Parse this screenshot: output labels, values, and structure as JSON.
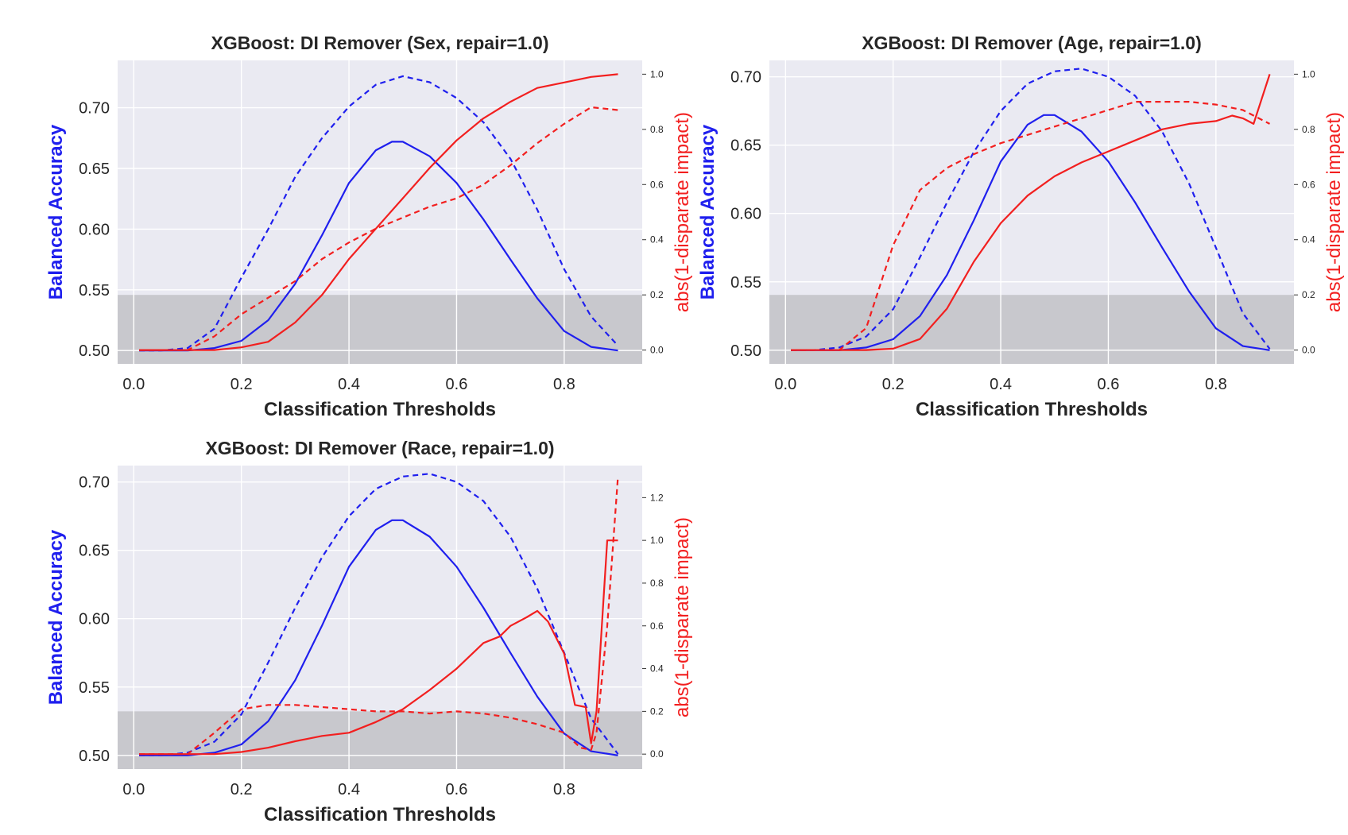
{
  "chart_data": [
    {
      "type": "line",
      "title": "XGBoost: DI Remover (Sex, repair=1.0)",
      "xlabel": "Classification Thresholds",
      "ylabel": "Balanced Accuracy",
      "y2label": "abs(1-disparate impact)",
      "xlim": [
        -0.03,
        0.945
      ],
      "ylim": [
        0.489,
        0.739
      ],
      "y2lim": [
        -0.05,
        1.05
      ],
      "xticks": [
        "0.0",
        "0.2",
        "0.4",
        "0.6",
        "0.8"
      ],
      "yticks": [
        "0.50",
        "0.55",
        "0.60",
        "0.65",
        "0.70"
      ],
      "y2ticks": [
        "0.0",
        "0.2",
        "0.4",
        "0.6",
        "0.8",
        "1.0"
      ],
      "fair_band": [
        0.0,
        0.2
      ],
      "grid": true,
      "colors": {
        "accuracy": "#1f1fee",
        "disparate_impact": "#f21f1f",
        "band": "#c8c8cd",
        "panel": "#eaeaf2"
      },
      "series": [
        {
          "role": "accuracy",
          "style": "solid",
          "axis": "left",
          "x": [
            0.01,
            0.05,
            0.1,
            0.15,
            0.2,
            0.25,
            0.3,
            0.35,
            0.4,
            0.45,
            0.48,
            0.5,
            0.55,
            0.6,
            0.65,
            0.7,
            0.75,
            0.8,
            0.85,
            0.9
          ],
          "y": [
            0.5,
            0.5,
            0.5,
            0.502,
            0.508,
            0.525,
            0.555,
            0.595,
            0.638,
            0.665,
            0.672,
            0.672,
            0.66,
            0.638,
            0.608,
            0.575,
            0.543,
            0.516,
            0.503,
            0.5
          ]
        },
        {
          "role": "accuracy",
          "style": "dashed",
          "axis": "left",
          "x": [
            0.01,
            0.05,
            0.1,
            0.15,
            0.2,
            0.25,
            0.3,
            0.35,
            0.4,
            0.45,
            0.5,
            0.55,
            0.6,
            0.65,
            0.7,
            0.75,
            0.8,
            0.85,
            0.9
          ],
          "y": [
            0.5,
            0.5,
            0.502,
            0.518,
            0.56,
            0.6,
            0.643,
            0.675,
            0.701,
            0.719,
            0.726,
            0.721,
            0.708,
            0.688,
            0.658,
            0.616,
            0.567,
            0.528,
            0.504
          ]
        },
        {
          "role": "disparate_impact",
          "style": "solid",
          "axis": "right",
          "x": [
            0.01,
            0.05,
            0.1,
            0.15,
            0.2,
            0.25,
            0.3,
            0.35,
            0.4,
            0.45,
            0.5,
            0.55,
            0.6,
            0.65,
            0.7,
            0.75,
            0.8,
            0.85,
            0.9
          ],
          "y": [
            0.0,
            0.0,
            0.0,
            0.0,
            0.01,
            0.03,
            0.1,
            0.2,
            0.33,
            0.44,
            0.55,
            0.66,
            0.76,
            0.84,
            0.9,
            0.95,
            0.97,
            0.99,
            1.0
          ]
        },
        {
          "role": "disparate_impact",
          "style": "dashed",
          "axis": "right",
          "x": [
            0.01,
            0.05,
            0.1,
            0.15,
            0.2,
            0.25,
            0.3,
            0.35,
            0.4,
            0.45,
            0.5,
            0.55,
            0.6,
            0.65,
            0.7,
            0.75,
            0.8,
            0.85,
            0.9
          ],
          "y": [
            0.0,
            0.0,
            0.0,
            0.05,
            0.13,
            0.19,
            0.25,
            0.33,
            0.39,
            0.44,
            0.48,
            0.52,
            0.55,
            0.6,
            0.67,
            0.75,
            0.82,
            0.88,
            0.87
          ]
        }
      ]
    },
    {
      "type": "line",
      "title": "XGBoost: DI Remover (Age, repair=1.0)",
      "xlabel": "Classification Thresholds",
      "ylabel": "Balanced Accuracy",
      "y2label": "abs(1-disparate impact)",
      "xlim": [
        -0.03,
        0.945
      ],
      "ylim": [
        0.49,
        0.712
      ],
      "y2lim": [
        -0.05,
        1.05
      ],
      "xticks": [
        "0.0",
        "0.2",
        "0.4",
        "0.6",
        "0.8"
      ],
      "yticks": [
        "0.50",
        "0.55",
        "0.60",
        "0.65",
        "0.70"
      ],
      "y2ticks": [
        "0.0",
        "0.2",
        "0.4",
        "0.6",
        "0.8",
        "1.0"
      ],
      "fair_band": [
        0.0,
        0.2
      ],
      "grid": true,
      "colors": {
        "accuracy": "#1f1fee",
        "disparate_impact": "#f21f1f",
        "band": "#c8c8cd",
        "panel": "#eaeaf2"
      },
      "series": [
        {
          "role": "accuracy",
          "style": "solid",
          "axis": "left",
          "x": [
            0.01,
            0.05,
            0.1,
            0.15,
            0.2,
            0.25,
            0.3,
            0.35,
            0.4,
            0.45,
            0.48,
            0.5,
            0.55,
            0.6,
            0.65,
            0.7,
            0.75,
            0.8,
            0.85,
            0.9
          ],
          "y": [
            0.5,
            0.5,
            0.5,
            0.502,
            0.508,
            0.525,
            0.555,
            0.595,
            0.638,
            0.665,
            0.672,
            0.672,
            0.66,
            0.638,
            0.608,
            0.575,
            0.543,
            0.516,
            0.503,
            0.5
          ]
        },
        {
          "role": "accuracy",
          "style": "dashed",
          "axis": "left",
          "x": [
            0.01,
            0.05,
            0.1,
            0.15,
            0.2,
            0.25,
            0.3,
            0.35,
            0.4,
            0.45,
            0.5,
            0.55,
            0.6,
            0.65,
            0.7,
            0.75,
            0.8,
            0.85,
            0.9
          ],
          "y": [
            0.5,
            0.5,
            0.502,
            0.51,
            0.53,
            0.568,
            0.608,
            0.645,
            0.675,
            0.695,
            0.704,
            0.706,
            0.7,
            0.686,
            0.66,
            0.622,
            0.575,
            0.527,
            0.501
          ]
        },
        {
          "role": "disparate_impact",
          "style": "solid",
          "axis": "right",
          "x": [
            0.01,
            0.05,
            0.1,
            0.15,
            0.2,
            0.25,
            0.3,
            0.35,
            0.4,
            0.45,
            0.5,
            0.55,
            0.6,
            0.65,
            0.7,
            0.75,
            0.8,
            0.83,
            0.85,
            0.87,
            0.9
          ],
          "y": [
            0.0,
            0.0,
            0.0,
            0.0,
            0.005,
            0.04,
            0.15,
            0.32,
            0.46,
            0.56,
            0.63,
            0.68,
            0.72,
            0.76,
            0.8,
            0.82,
            0.83,
            0.85,
            0.84,
            0.82,
            1.0
          ]
        },
        {
          "role": "disparate_impact",
          "style": "dashed",
          "axis": "right",
          "x": [
            0.01,
            0.05,
            0.1,
            0.15,
            0.2,
            0.25,
            0.3,
            0.35,
            0.4,
            0.45,
            0.5,
            0.55,
            0.6,
            0.65,
            0.7,
            0.75,
            0.8,
            0.85,
            0.9
          ],
          "y": [
            0.0,
            0.0,
            0.0,
            0.08,
            0.38,
            0.58,
            0.66,
            0.71,
            0.75,
            0.78,
            0.81,
            0.84,
            0.87,
            0.9,
            0.9,
            0.9,
            0.89,
            0.87,
            0.82
          ]
        }
      ]
    },
    {
      "type": "line",
      "title": "XGBoost: DI Remover (Race, repair=1.0)",
      "xlabel": "Classification Thresholds",
      "ylabel": "Balanced Accuracy",
      "y2label": "abs(1-disparate impact)",
      "xlim": [
        -0.03,
        0.945
      ],
      "ylim": [
        0.49,
        0.712
      ],
      "y2lim": [
        -0.07,
        1.35
      ],
      "xticks": [
        "0.0",
        "0.2",
        "0.4",
        "0.6",
        "0.8"
      ],
      "yticks": [
        "0.50",
        "0.55",
        "0.60",
        "0.65",
        "0.70"
      ],
      "y2ticks": [
        "0.0",
        "0.2",
        "0.4",
        "0.6",
        "0.8",
        "1.0",
        "1.2"
      ],
      "fair_band": [
        0.0,
        0.2
      ],
      "grid": true,
      "colors": {
        "accuracy": "#1f1fee",
        "disparate_impact": "#f21f1f",
        "band": "#c8c8cd",
        "panel": "#eaeaf2"
      },
      "series": [
        {
          "role": "accuracy",
          "style": "solid",
          "axis": "left",
          "x": [
            0.01,
            0.05,
            0.1,
            0.15,
            0.2,
            0.25,
            0.3,
            0.35,
            0.4,
            0.45,
            0.48,
            0.5,
            0.55,
            0.6,
            0.65,
            0.7,
            0.75,
            0.8,
            0.85,
            0.9
          ],
          "y": [
            0.5,
            0.5,
            0.5,
            0.502,
            0.508,
            0.525,
            0.555,
            0.595,
            0.638,
            0.665,
            0.672,
            0.672,
            0.66,
            0.638,
            0.608,
            0.575,
            0.543,
            0.516,
            0.503,
            0.5
          ]
        },
        {
          "role": "accuracy",
          "style": "dashed",
          "axis": "left",
          "x": [
            0.01,
            0.05,
            0.1,
            0.15,
            0.2,
            0.25,
            0.3,
            0.35,
            0.4,
            0.45,
            0.5,
            0.55,
            0.6,
            0.65,
            0.7,
            0.75,
            0.8,
            0.85,
            0.9
          ],
          "y": [
            0.5,
            0.5,
            0.502,
            0.51,
            0.53,
            0.568,
            0.608,
            0.645,
            0.675,
            0.695,
            0.704,
            0.706,
            0.7,
            0.686,
            0.66,
            0.622,
            0.575,
            0.527,
            0.501
          ]
        },
        {
          "role": "disparate_impact",
          "style": "solid",
          "axis": "right",
          "x": [
            0.01,
            0.05,
            0.1,
            0.15,
            0.2,
            0.25,
            0.3,
            0.35,
            0.4,
            0.45,
            0.5,
            0.55,
            0.6,
            0.65,
            0.68,
            0.7,
            0.73,
            0.75,
            0.77,
            0.8,
            0.82,
            0.84,
            0.85,
            0.86,
            0.87,
            0.88,
            0.89,
            0.9
          ],
          "y": [
            0.0,
            0.0,
            0.0,
            0.0,
            0.01,
            0.03,
            0.06,
            0.085,
            0.1,
            0.15,
            0.21,
            0.3,
            0.4,
            0.52,
            0.55,
            0.6,
            0.64,
            0.67,
            0.62,
            0.47,
            0.23,
            0.22,
            0.05,
            0.2,
            0.6,
            1.0,
            1.0,
            1.0
          ]
        },
        {
          "role": "disparate_impact",
          "style": "dashed",
          "axis": "right",
          "x": [
            0.01,
            0.05,
            0.1,
            0.15,
            0.2,
            0.25,
            0.3,
            0.35,
            0.4,
            0.45,
            0.5,
            0.55,
            0.6,
            0.65,
            0.7,
            0.75,
            0.8,
            0.83,
            0.85,
            0.86,
            0.88,
            0.9
          ],
          "y": [
            0.0,
            0.0,
            0.0,
            0.1,
            0.21,
            0.23,
            0.23,
            0.22,
            0.21,
            0.2,
            0.2,
            0.19,
            0.2,
            0.19,
            0.17,
            0.14,
            0.1,
            0.03,
            0.02,
            0.1,
            0.6,
            1.3
          ]
        }
      ]
    }
  ]
}
